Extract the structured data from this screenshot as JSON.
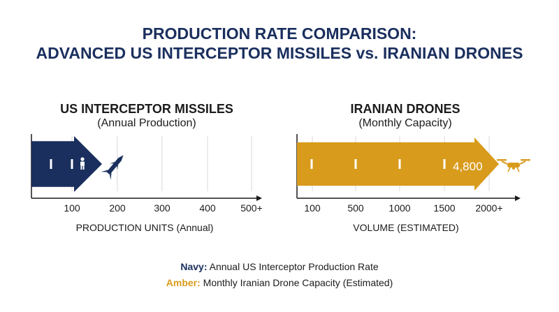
{
  "header": {
    "title_line1": "PRODUCTION RATE COMPARISON:",
    "title_line2": "ADVANCED US INTERCEPTOR MISSILES vs. IRANIAN DRONES"
  },
  "colors": {
    "navy": "#1a2f5e",
    "amber": "#d89b1c",
    "grid": "#d9d9d9",
    "axis": "#1b1b1b"
  },
  "chart_data": [
    {
      "type": "bar",
      "title": "US INTERCEPTOR MISSILES",
      "subtitle": "(Annual Production)",
      "xlabel": "PRODUCTION UNITS (Annual)",
      "ticks": [
        "100",
        "200",
        "300",
        "400",
        "500+"
      ],
      "tick_values": [
        100,
        200,
        300,
        400,
        500
      ],
      "xlim": [
        0,
        500
      ],
      "value": 100,
      "value_label": "",
      "color": "#1a2f5e",
      "icon": "missile-icon",
      "grid": true
    },
    {
      "type": "bar",
      "title": "IRANIAN DRONES",
      "subtitle": "(Monthly Capacity)",
      "xlabel": "VOLUME (ESTIMATED)",
      "ticks": [
        "100",
        "500",
        "1000",
        "1500",
        "2000+"
      ],
      "tick_values": [
        100,
        500,
        1000,
        1500,
        2000
      ],
      "xlim": [
        0,
        2000
      ],
      "value": 4800,
      "value_label": "4,800",
      "color": "#d89b1c",
      "icon": "drone-icon",
      "grid": true
    }
  ],
  "legend": {
    "navy_key": "Navy:",
    "navy_text": " Annual US Interceptor Production Rate",
    "amber_key": "Amber:",
    "amber_text": " Monthly Iranian Drone Capacity (Estimated)"
  }
}
